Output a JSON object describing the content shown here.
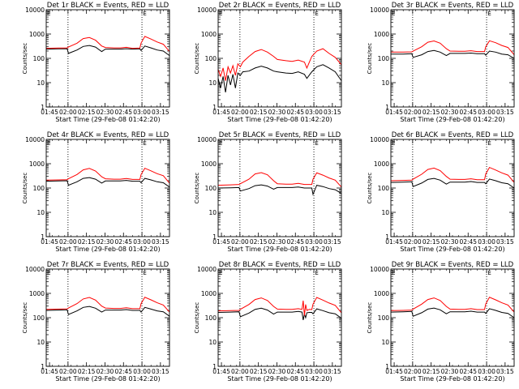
{
  "colors": {
    "events": "#000000",
    "lld": "#ff0000",
    "axis": "#000000"
  },
  "shared": {
    "xlabel": "Start Time (29-Feb-08 01:42:20)",
    "ylabel": "Counts/sec",
    "x_tick_labels": [
      "01:45",
      "02:00",
      "02:15",
      "02:30",
      "02:45",
      "03:00",
      "03:15"
    ],
    "x_tick_minutes": [
      2.67,
      17.67,
      32.67,
      47.67,
      62.67,
      77.67,
      92.67
    ],
    "y_tick_labels": [
      "1",
      "10",
      "100",
      "1000",
      "10000"
    ],
    "y_tick_values": [
      1,
      10,
      100,
      1000,
      10000
    ],
    "x_range_minutes": [
      0,
      100
    ],
    "y_range": [
      1,
      10000
    ],
    "y_scale": "log",
    "dotted_vlines_minutes": [
      17.67,
      77.67
    ],
    "marker_label": "E",
    "marker_minutes": 80
  },
  "chart_data": [
    {
      "type": "line",
      "title": "Det 1r BLACK = Events, RED = LLD",
      "series": [
        {
          "name": "LLD",
          "color": "red",
          "x": [
            0,
            10,
            17,
            18,
            25,
            30,
            35,
            40,
            45,
            48,
            55,
            60,
            65,
            70,
            76,
            77,
            80,
            85,
            90,
            95,
            100
          ],
          "values": [
            260,
            265,
            270,
            290,
            420,
            650,
            720,
            560,
            320,
            280,
            270,
            270,
            285,
            260,
            265,
            430,
            800,
            620,
            470,
            380,
            190
          ]
        },
        {
          "name": "Events",
          "color": "black",
          "x": [
            0,
            10,
            17,
            18,
            25,
            30,
            35,
            40,
            45,
            48,
            55,
            60,
            65,
            70,
            76,
            77,
            80,
            85,
            90,
            95,
            100
          ],
          "values": [
            240,
            245,
            250,
            160,
            220,
            310,
            340,
            290,
            190,
            240,
            240,
            240,
            250,
            240,
            245,
            210,
            320,
            270,
            220,
            200,
            130
          ]
        }
      ]
    },
    {
      "type": "line",
      "title": "Det 2r BLACK = Events, RED = LLD",
      "series": [
        {
          "name": "LLD",
          "color": "red",
          "x": [
            0,
            2,
            4,
            6,
            8,
            10,
            12,
            14,
            16,
            18,
            20,
            25,
            30,
            35,
            40,
            45,
            48,
            55,
            60,
            65,
            70,
            72,
            76,
            80,
            85,
            90,
            95,
            100
          ],
          "values": [
            35,
            18,
            40,
            12,
            45,
            25,
            50,
            20,
            60,
            45,
            70,
            120,
            190,
            230,
            180,
            120,
            90,
            80,
            75,
            85,
            70,
            40,
            120,
            200,
            250,
            160,
            110,
            55
          ]
        },
        {
          "name": "Events",
          "color": "black",
          "x": [
            0,
            2,
            4,
            6,
            8,
            10,
            12,
            14,
            16,
            18,
            20,
            25,
            30,
            35,
            40,
            45,
            48,
            55,
            60,
            65,
            70,
            72,
            76,
            80,
            85,
            90,
            95,
            100
          ],
          "values": [
            15,
            6,
            18,
            4,
            20,
            8,
            22,
            6,
            25,
            20,
            28,
            30,
            40,
            48,
            40,
            30,
            28,
            25,
            24,
            28,
            22,
            15,
            28,
            45,
            55,
            40,
            28,
            12
          ]
        }
      ]
    },
    {
      "type": "line",
      "title": "Det 3r BLACK = Events, RED = LLD",
      "series": [
        {
          "name": "LLD",
          "color": "red",
          "x": [
            0,
            10,
            17,
            18,
            25,
            30,
            35,
            40,
            45,
            48,
            55,
            60,
            65,
            70,
            76,
            77,
            80,
            85,
            90,
            95,
            100
          ],
          "values": [
            180,
            180,
            185,
            200,
            300,
            460,
            520,
            420,
            250,
            200,
            195,
            195,
            205,
            190,
            190,
            300,
            530,
            440,
            340,
            280,
            140
          ]
        },
        {
          "name": "Events",
          "color": "black",
          "x": [
            0,
            10,
            17,
            18,
            25,
            30,
            35,
            40,
            45,
            48,
            55,
            60,
            65,
            70,
            76,
            77,
            80,
            85,
            90,
            95,
            100
          ],
          "values": [
            150,
            150,
            155,
            110,
            140,
            190,
            210,
            180,
            130,
            160,
            160,
            160,
            165,
            155,
            155,
            135,
            200,
            180,
            150,
            140,
            100
          ]
        }
      ]
    },
    {
      "type": "line",
      "title": "Det 4r BLACK = Events, RED = LLD",
      "series": [
        {
          "name": "LLD",
          "color": "red",
          "x": [
            0,
            10,
            17,
            18,
            25,
            30,
            35,
            40,
            45,
            48,
            55,
            60,
            65,
            70,
            76,
            77,
            80,
            85,
            90,
            95,
            100
          ],
          "values": [
            210,
            215,
            220,
            240,
            360,
            560,
            640,
            500,
            290,
            240,
            230,
            230,
            245,
            225,
            225,
            360,
            650,
            510,
            390,
            320,
            160
          ]
        },
        {
          "name": "Events",
          "color": "black",
          "x": [
            0,
            10,
            17,
            18,
            25,
            30,
            35,
            40,
            45,
            48,
            55,
            60,
            65,
            70,
            76,
            77,
            80,
            85,
            90,
            95,
            100
          ],
          "values": [
            190,
            195,
            200,
            130,
            180,
            250,
            270,
            230,
            160,
            195,
            195,
            195,
            205,
            190,
            190,
            165,
            250,
            215,
            180,
            165,
            110
          ]
        }
      ]
    },
    {
      "type": "line",
      "title": "Det 5r BLACK = Events, RED = LLD",
      "series": [
        {
          "name": "LLD",
          "color": "red",
          "x": [
            0,
            10,
            17,
            18,
            25,
            30,
            35,
            40,
            45,
            48,
            55,
            60,
            65,
            70,
            76,
            77,
            80,
            85,
            90,
            95,
            100
          ],
          "values": [
            130,
            135,
            140,
            150,
            230,
            380,
            430,
            350,
            200,
            150,
            145,
            145,
            155,
            140,
            140,
            230,
            420,
            340,
            260,
            210,
            110
          ]
        },
        {
          "name": "Events",
          "color": "black",
          "x": [
            0,
            10,
            17,
            18,
            25,
            30,
            35,
            40,
            45,
            48,
            55,
            60,
            65,
            70,
            76,
            77,
            80,
            85,
            90,
            95,
            100
          ],
          "values": [
            100,
            102,
            105,
            75,
            95,
            125,
            135,
            120,
            90,
            105,
            105,
            105,
            110,
            100,
            100,
            55,
            130,
            115,
            95,
            85,
            60
          ]
        }
      ]
    },
    {
      "type": "line",
      "title": "Det 6r BLACK = Events, RED = LLD",
      "series": [
        {
          "name": "LLD",
          "color": "red",
          "x": [
            0,
            10,
            17,
            18,
            25,
            30,
            35,
            40,
            45,
            48,
            55,
            60,
            65,
            70,
            76,
            77,
            80,
            85,
            90,
            95,
            100
          ],
          "values": [
            200,
            205,
            210,
            230,
            370,
            580,
            660,
            520,
            300,
            230,
            225,
            225,
            240,
            220,
            220,
            380,
            700,
            550,
            420,
            340,
            170
          ]
        },
        {
          "name": "Events",
          "color": "black",
          "x": [
            0,
            10,
            17,
            18,
            25,
            30,
            35,
            40,
            45,
            48,
            55,
            60,
            65,
            70,
            76,
            77,
            80,
            85,
            90,
            95,
            100
          ],
          "values": [
            170,
            175,
            180,
            115,
            160,
            225,
            250,
            210,
            145,
            175,
            175,
            175,
            185,
            170,
            170,
            150,
            235,
            200,
            165,
            150,
            100
          ]
        }
      ]
    },
    {
      "type": "line",
      "title": "Det 7r BLACK = Events, RED = LLD",
      "series": [
        {
          "name": "LLD",
          "color": "red",
          "x": [
            0,
            10,
            17,
            18,
            25,
            30,
            35,
            40,
            45,
            48,
            55,
            60,
            65,
            70,
            76,
            77,
            80,
            85,
            90,
            95,
            100
          ],
          "values": [
            220,
            225,
            230,
            250,
            380,
            590,
            680,
            530,
            300,
            250,
            240,
            240,
            255,
            235,
            235,
            380,
            690,
            540,
            410,
            330,
            170
          ]
        },
        {
          "name": "Events",
          "color": "black",
          "x": [
            0,
            10,
            17,
            18,
            25,
            30,
            35,
            40,
            45,
            48,
            55,
            60,
            65,
            70,
            76,
            77,
            80,
            85,
            90,
            95,
            100
          ],
          "values": [
            200,
            205,
            210,
            135,
            190,
            265,
            290,
            245,
            170,
            205,
            205,
            205,
            215,
            200,
            200,
            170,
            265,
            225,
            190,
            175,
            115
          ]
        }
      ]
    },
    {
      "type": "line",
      "title": "Det 8r BLACK = Events, RED = LLD",
      "series": [
        {
          "name": "LLD",
          "color": "red",
          "x": [
            0,
            10,
            17,
            18,
            25,
            30,
            35,
            40,
            45,
            48,
            55,
            60,
            65,
            68,
            69,
            70,
            71,
            72,
            74,
            76,
            77,
            80,
            85,
            90,
            95,
            100
          ],
          "values": [
            190,
            195,
            200,
            220,
            350,
            560,
            650,
            510,
            290,
            225,
            220,
            220,
            235,
            220,
            500,
            120,
            350,
            200,
            220,
            215,
            360,
            680,
            530,
            400,
            320,
            160
          ]
        },
        {
          "name": "Events",
          "color": "black",
          "x": [
            0,
            10,
            17,
            18,
            25,
            30,
            35,
            40,
            45,
            48,
            55,
            60,
            65,
            68,
            69,
            70,
            71,
            72,
            74,
            76,
            77,
            80,
            85,
            90,
            95,
            100
          ],
          "values": [
            165,
            170,
            175,
            110,
            155,
            220,
            245,
            205,
            140,
            170,
            170,
            170,
            180,
            170,
            80,
            140,
            100,
            160,
            165,
            165,
            145,
            230,
            195,
            160,
            145,
            95
          ]
        }
      ]
    },
    {
      "type": "line",
      "title": "Det 9r BLACK = Events, RED = LLD",
      "series": [
        {
          "name": "LLD",
          "color": "red",
          "x": [
            0,
            10,
            17,
            18,
            25,
            30,
            35,
            40,
            45,
            48,
            55,
            60,
            65,
            70,
            76,
            77,
            80,
            85,
            90,
            95,
            100
          ],
          "values": [
            195,
            200,
            205,
            225,
            360,
            560,
            650,
            510,
            290,
            225,
            220,
            220,
            235,
            215,
            215,
            370,
            690,
            540,
            410,
            330,
            170
          ]
        },
        {
          "name": "Events",
          "color": "black",
          "x": [
            0,
            10,
            17,
            18,
            25,
            30,
            35,
            40,
            45,
            48,
            55,
            60,
            65,
            70,
            76,
            77,
            80,
            85,
            90,
            95,
            100
          ],
          "values": [
            170,
            175,
            180,
            115,
            160,
            225,
            250,
            210,
            145,
            175,
            175,
            175,
            185,
            170,
            170,
            150,
            235,
            200,
            165,
            150,
            100
          ]
        }
      ]
    }
  ]
}
